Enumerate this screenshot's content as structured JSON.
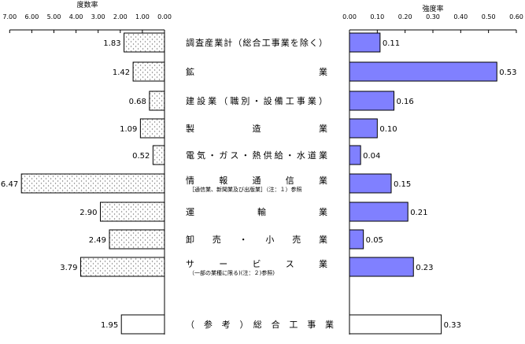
{
  "chart_data": [
    {
      "type": "bar",
      "orientation": "horizontal",
      "direction": "right-to-left",
      "title": "度数率",
      "xlim": [
        0,
        7
      ],
      "ticks": [
        "7.00",
        "6.00",
        "5.00",
        "4.00",
        "3.00",
        "2.00",
        "1.00",
        "0.00"
      ],
      "fill": "dotted-pattern",
      "values": [
        1.83,
        1.42,
        0.68,
        1.09,
        0.52,
        6.47,
        2.9,
        2.49,
        3.79,
        1.95
      ],
      "labels": [
        "1.83",
        "1.42",
        "0.68",
        "1.09",
        "0.52",
        "6.47",
        "2.90",
        "2.49",
        "3.79",
        "1.95"
      ]
    },
    {
      "type": "bar",
      "orientation": "horizontal",
      "title": "強度率",
      "xlim": [
        0,
        0.6
      ],
      "ticks": [
        "0.00",
        "0.10",
        "0.20",
        "0.30",
        "0.40",
        "0.50",
        "0.60"
      ],
      "color": "#8080ff",
      "values": [
        0.11,
        0.53,
        0.16,
        0.1,
        0.04,
        0.15,
        0.21,
        0.05,
        0.23,
        0.33
      ],
      "labels": [
        "0.11",
        "0.53",
        "0.16",
        "0.10",
        "0.04",
        "0.15",
        "0.21",
        "0.05",
        "0.23",
        "0.33"
      ]
    }
  ],
  "categories": [
    {
      "label": "調査産業計（総合工事業を除く）",
      "sub": ""
    },
    {
      "label": "鉱　　　　　　　　　　業",
      "sub": ""
    },
    {
      "label": "建設業（職別・設備工事業）",
      "sub": ""
    },
    {
      "label": "製　　　　造　　　　業",
      "sub": ""
    },
    {
      "label": "電気・ガス・熱供給・水道業",
      "sub": ""
    },
    {
      "label": "情　　報　　通　　信　　業",
      "sub": "［通信業、新聞業及び出版業］（注：１）参照"
    },
    {
      "label": "運　　　　　　輸　　　　　業",
      "sub": ""
    },
    {
      "label": "卸　売　・　小　売　業",
      "sub": ""
    },
    {
      "label": "サ　　ー　　ビ　　ス　　業",
      "sub": "（一部の業種に限る)(注：２)参照)"
    },
    {
      "label": "（　参　考　）　総　合　工　事　業",
      "sub": "",
      "reference": true
    }
  ],
  "colors": {
    "severity_fill": "#8080ff",
    "reference_fill": "#ffffff",
    "border": "#000000"
  }
}
